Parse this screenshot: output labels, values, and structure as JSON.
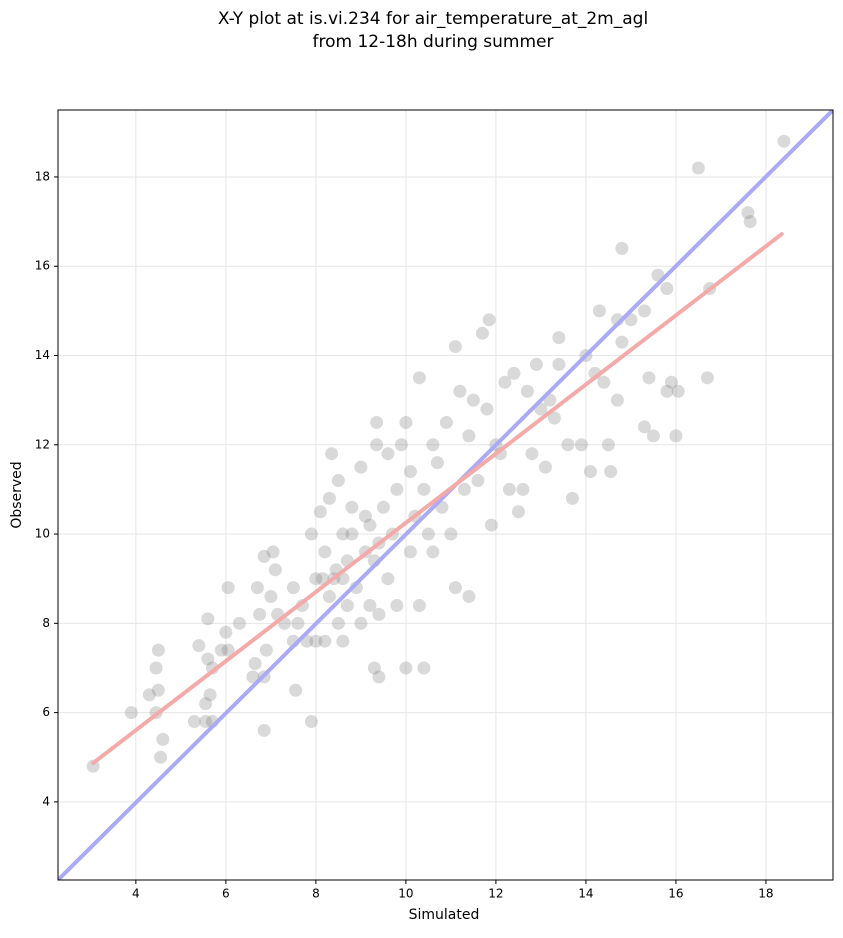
{
  "chart_data": {
    "type": "scatter",
    "title": [
      "X-Y plot at is.vi.234 for air_temperature_at_2m_agl",
      "from 12-18h during summer"
    ],
    "xlabel": "Simulated",
    "ylabel": "Observed",
    "xlim": [
      2.27,
      19.49
    ],
    "ylim": [
      2.25,
      19.5
    ],
    "xticks": [
      4,
      6,
      8,
      10,
      12,
      14,
      16,
      18
    ],
    "yticks": [
      4,
      6,
      8,
      10,
      12,
      14,
      16,
      18
    ],
    "grid": true,
    "series": [
      {
        "color": "#808080",
        "x": [
          3.05,
          3.9,
          4.3,
          4.5,
          4.45,
          4.45,
          4.5,
          4.6,
          4.55,
          5.3,
          5.4,
          5.6,
          5.6,
          5.65,
          5.7,
          5.55,
          5.55,
          5.9,
          6.0,
          6.05,
          6.05,
          5.7,
          6.3,
          6.6,
          6.65,
          6.7,
          6.75,
          6.85,
          6.9,
          6.85,
          6.85,
          7.05,
          7.0,
          7.1,
          7.15,
          7.3,
          7.5,
          7.5,
          7.55,
          7.6,
          7.7,
          7.8,
          7.9,
          8.0,
          7.9,
          8.0,
          8.1,
          8.15,
          8.2,
          8.2,
          8.3,
          8.3,
          8.35,
          8.4,
          8.45,
          8.5,
          8.5,
          8.6,
          8.6,
          8.6,
          8.7,
          8.7,
          8.8,
          8.8,
          8.9,
          9.0,
          9.0,
          9.1,
          9.1,
          9.2,
          9.2,
          9.3,
          9.3,
          9.35,
          9.35,
          9.4,
          9.4,
          9.4,
          9.5,
          9.6,
          9.6,
          9.7,
          9.8,
          9.8,
          9.9,
          10.0,
          10.0,
          10.1,
          10.1,
          10.2,
          10.3,
          10.3,
          10.4,
          10.4,
          10.5,
          10.6,
          10.6,
          10.7,
          10.8,
          10.9,
          11.0,
          11.1,
          11.1,
          11.2,
          11.3,
          11.4,
          11.4,
          11.5,
          11.6,
          11.7,
          11.8,
          11.85,
          11.9,
          12.0,
          12.1,
          12.2,
          12.3,
          12.4,
          12.5,
          12.6,
          12.7,
          12.8,
          12.9,
          13.0,
          13.1,
          13.2,
          13.3,
          13.4,
          13.4,
          13.6,
          13.7,
          13.9,
          14.0,
          14.1,
          14.2,
          14.3,
          14.4,
          14.5,
          14.55,
          14.7,
          14.7,
          14.8,
          14.8,
          15.0,
          15.3,
          15.3,
          15.4,
          15.5,
          15.6,
          15.8,
          15.8,
          15.9,
          16.0,
          16.05,
          16.5,
          16.7,
          16.75,
          17.6,
          17.65,
          18.4
        ],
        "values": [
          4.8,
          6.0,
          6.4,
          7.4,
          7.0,
          6.0,
          6.5,
          5.4,
          5.0,
          5.8,
          7.5,
          8.1,
          7.2,
          6.4,
          5.8,
          5.8,
          6.2,
          7.4,
          7.8,
          8.8,
          7.4,
          7.0,
          8.0,
          6.8,
          7.1,
          8.8,
          8.2,
          9.5,
          7.4,
          6.8,
          5.6,
          9.6,
          8.6,
          9.2,
          8.2,
          8.0,
          8.8,
          7.6,
          6.5,
          8.0,
          8.4,
          7.6,
          10.0,
          9.0,
          5.8,
          7.6,
          10.5,
          9.0,
          9.6,
          7.6,
          8.6,
          10.8,
          11.8,
          9.0,
          9.2,
          8.0,
          11.2,
          10.0,
          9.0,
          7.6,
          8.4,
          9.4,
          10.6,
          10.0,
          8.8,
          8.0,
          11.5,
          9.6,
          10.4,
          8.4,
          10.2,
          9.4,
          7.0,
          12.5,
          12.0,
          9.8,
          8.2,
          6.8,
          10.6,
          11.8,
          9.0,
          10.0,
          8.4,
          11.0,
          12.0,
          7.0,
          12.5,
          11.4,
          9.6,
          10.4,
          8.4,
          13.5,
          7.0,
          11.0,
          10.0,
          12.0,
          9.6,
          11.6,
          10.6,
          12.5,
          10.0,
          14.2,
          8.8,
          13.2,
          11.0,
          12.2,
          8.6,
          13.0,
          11.2,
          14.5,
          12.8,
          14.8,
          10.2,
          12.0,
          11.8,
          13.4,
          11.0,
          13.6,
          10.5,
          11.0,
          13.2,
          11.8,
          13.8,
          12.8,
          11.5,
          13.0,
          12.6,
          13.8,
          14.4,
          12.0,
          10.8,
          12.0,
          14.0,
          11.4,
          13.6,
          15.0,
          13.4,
          12.0,
          11.4,
          14.8,
          13.0,
          16.4,
          14.3,
          14.8,
          15.0,
          12.4,
          13.5,
          12.2,
          15.8,
          13.2,
          15.5,
          13.4,
          12.2,
          13.2,
          18.2,
          13.5,
          15.5,
          17.2,
          17.0,
          18.8
        ]
      }
    ],
    "lines": [
      {
        "color": "#aaaaf5",
        "x": [
          2.27,
          19.49
        ],
        "values": [
          2.25,
          19.5
        ]
      },
      {
        "color": "#f5aaaa",
        "x": [
          3.05,
          18.35
        ],
        "values": [
          4.87,
          16.72
        ]
      }
    ]
  }
}
